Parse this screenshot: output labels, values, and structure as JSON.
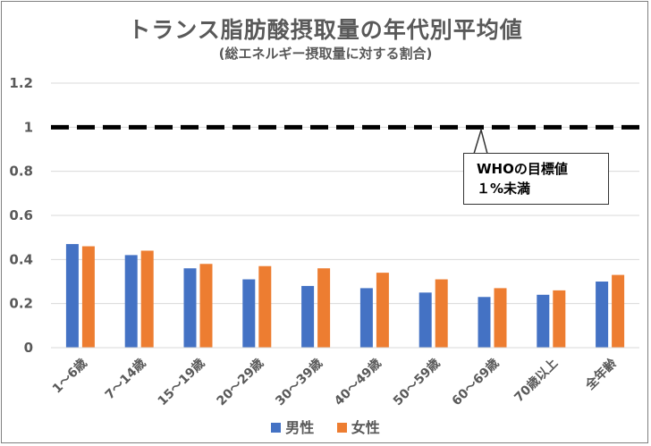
{
  "chart_data": {
    "type": "bar",
    "title": "トランス脂肪酸摂取量の年代別平均値",
    "subtitle": "(総エネルギー摂取量に対する割合)",
    "categories": [
      "1～6歳",
      "7～14歳",
      "15～19歳",
      "20～29歳",
      "30～39歳",
      "40～49歳",
      "50～59歳",
      "60～69歳",
      "70歳以上",
      "全年齢"
    ],
    "series": [
      {
        "name": "男性",
        "color": "#4472c4",
        "values": [
          0.47,
          0.42,
          0.36,
          0.31,
          0.28,
          0.27,
          0.25,
          0.23,
          0.24,
          0.3
        ]
      },
      {
        "name": "女性",
        "color": "#ed7d31",
        "values": [
          0.46,
          0.44,
          0.38,
          0.37,
          0.36,
          0.34,
          0.31,
          0.27,
          0.26,
          0.33
        ]
      }
    ],
    "ylim": [
      0,
      1.2
    ],
    "yticks": [
      "0",
      "0.2",
      "0.4",
      "0.6",
      "0.8",
      "1",
      "1.2"
    ],
    "reference_line": {
      "value": 1.0,
      "style": "dashed"
    },
    "annotation": {
      "line1": "WHOの目標値",
      "line2": "１%未満"
    },
    "legend_position": "bottom",
    "grid": true
  }
}
